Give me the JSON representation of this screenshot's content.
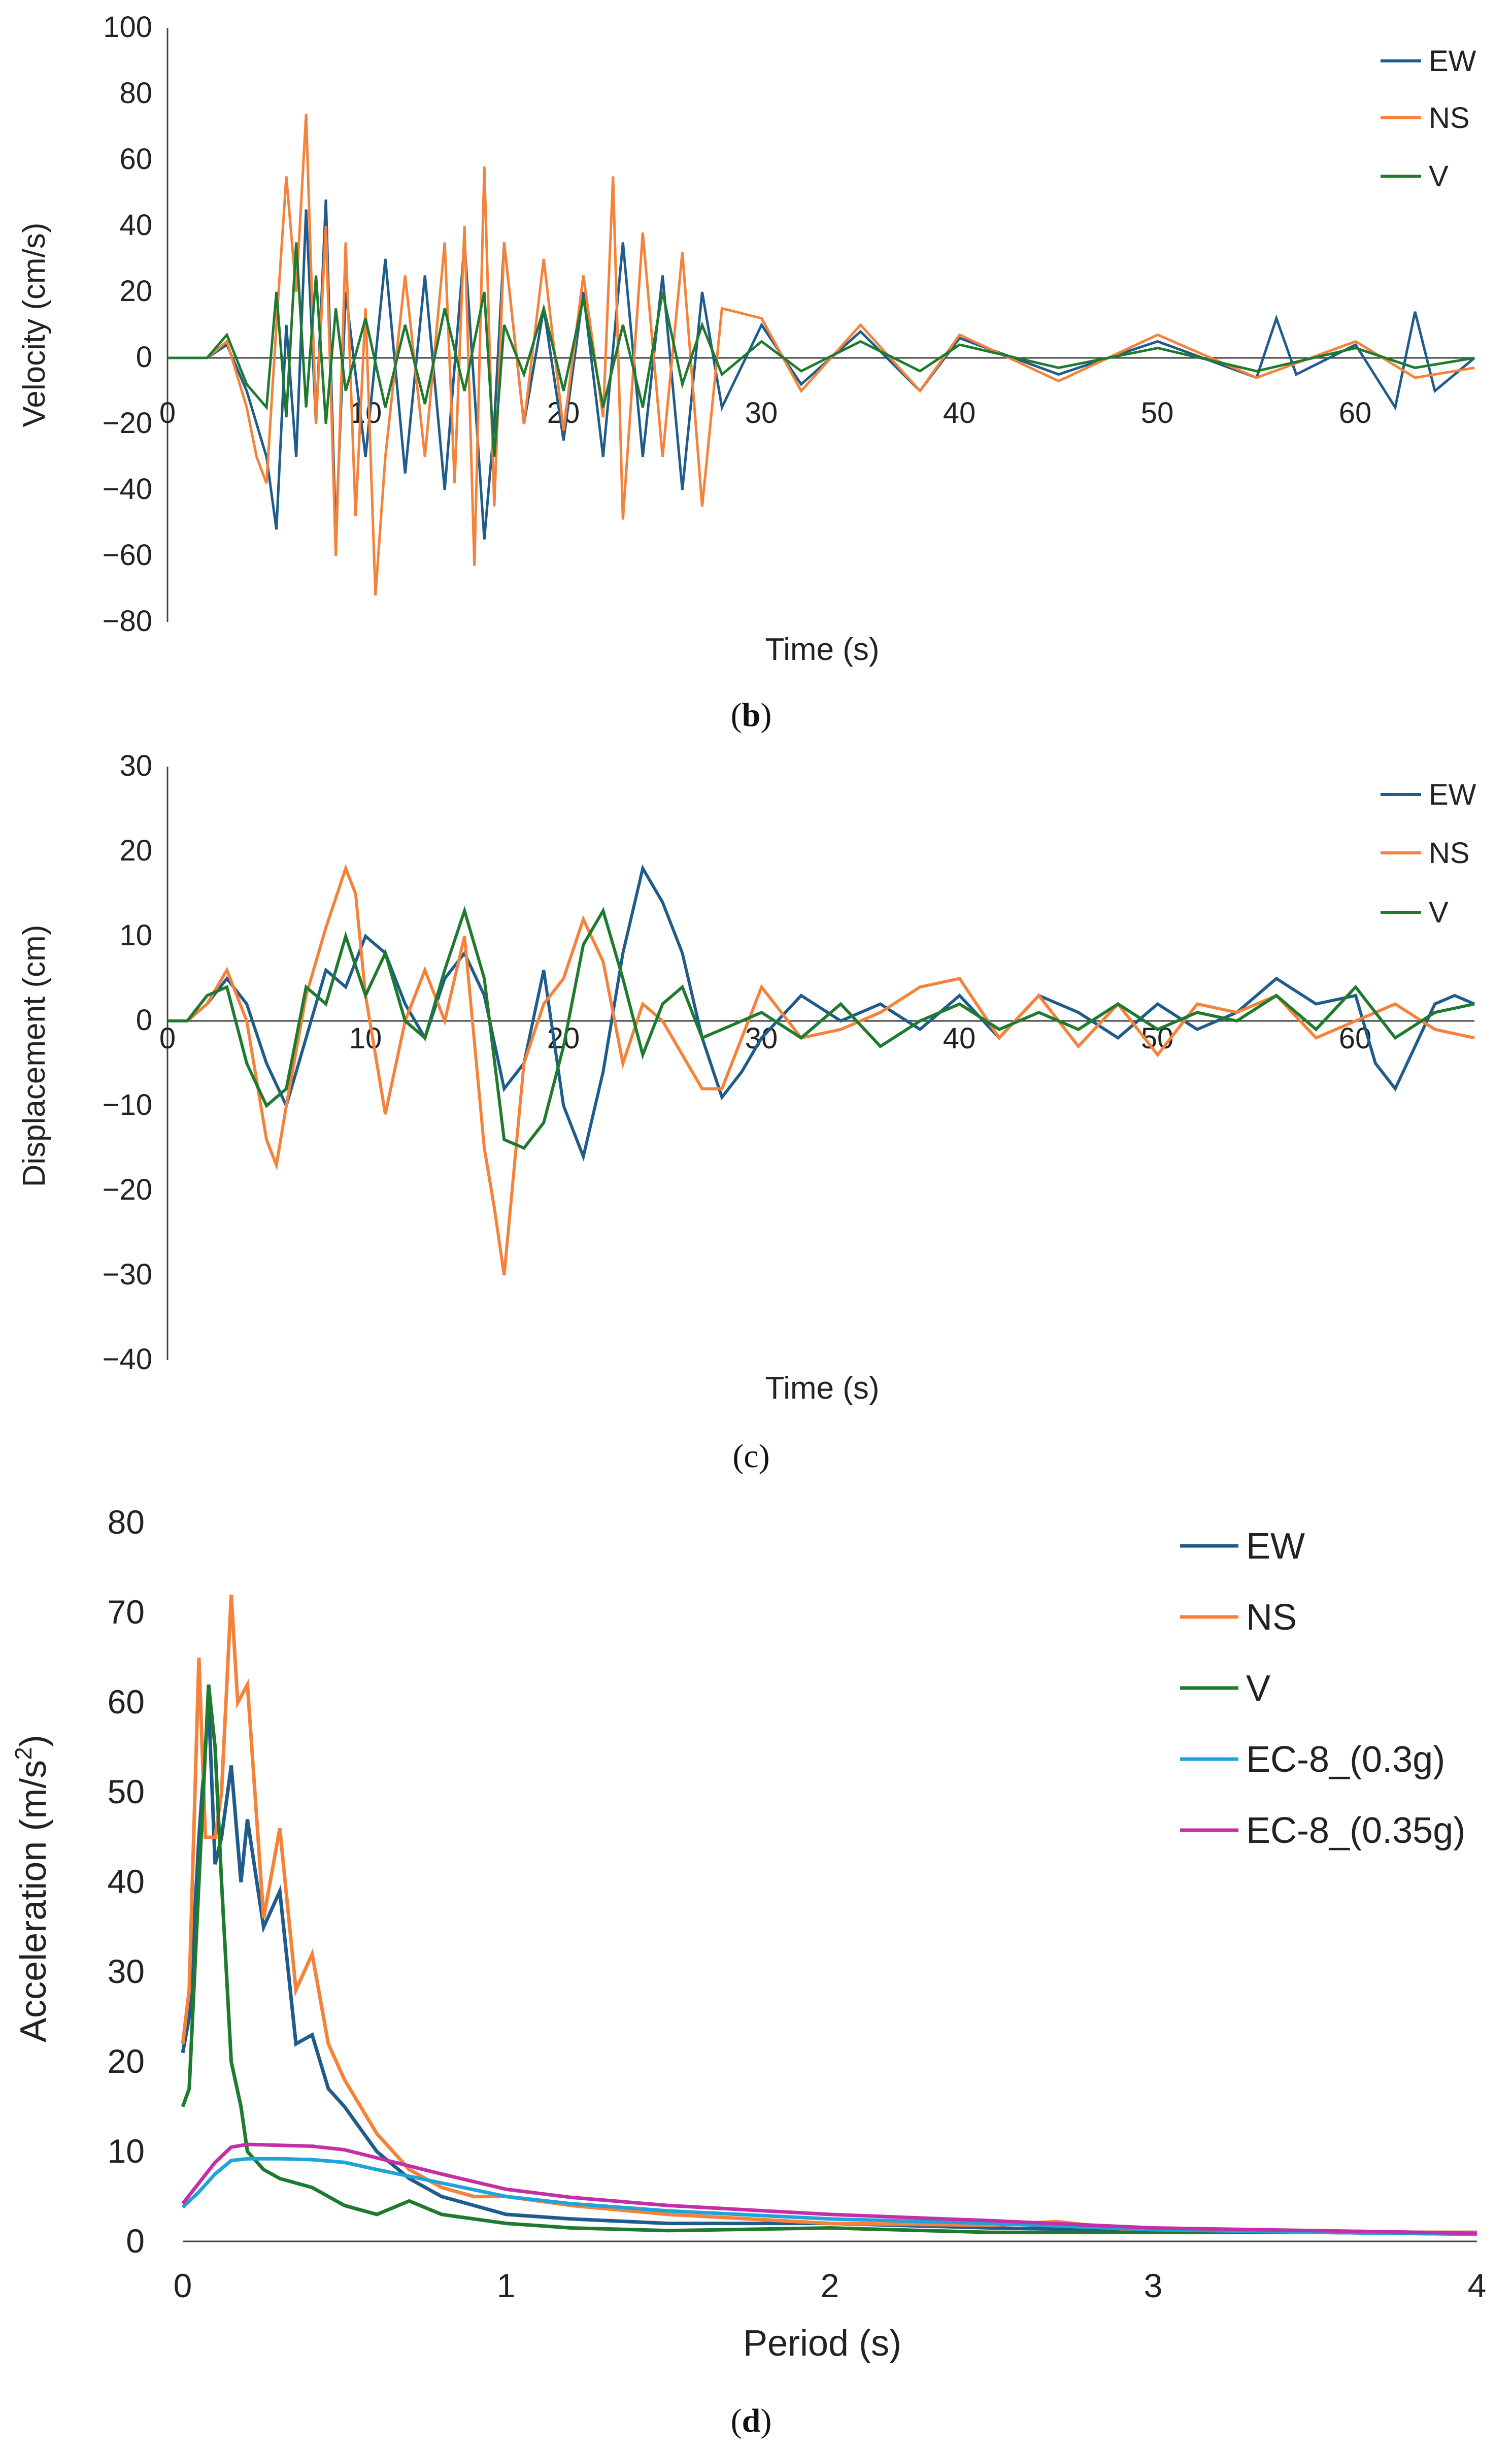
{
  "colors": {
    "EW": "#1f5c8b",
    "NS": "#f5823a",
    "V": "#1e7a2e",
    "EC8_03": "#1fa3d8",
    "EC8_035": "#c42fa8",
    "axis": "#444444"
  },
  "chart_data": [
    {
      "id": "b",
      "type": "line",
      "caption_label": "b",
      "xlabel": "Time (s)",
      "ylabel": "Velocity (cm/s)",
      "xlim": [
        0,
        66
      ],
      "ylim": [
        -80,
        100
      ],
      "xticks": [
        0,
        10,
        20,
        30,
        40,
        50,
        60
      ],
      "yticks": [
        100,
        80,
        60,
        40,
        20,
        0,
        -20,
        -40,
        -60,
        -80
      ],
      "xtick_labels": [
        "0",
        "10",
        "20",
        "30",
        "40",
        "50",
        "60"
      ],
      "ytick_labels": [
        "100",
        "80",
        "60",
        "40",
        "20",
        "0",
        "−20",
        "−40",
        "−60",
        "−80"
      ],
      "legend": [
        "EW",
        "NS",
        "V"
      ],
      "series": [
        {
          "name": "EW",
          "color_key": "EW",
          "x": [
            0,
            2,
            3,
            4,
            5,
            5.5,
            6,
            6.5,
            7,
            7.5,
            8,
            8.5,
            9,
            10,
            11,
            12,
            13,
            14,
            15,
            16,
            16.5,
            17,
            18,
            19,
            20,
            21,
            22,
            23,
            24,
            25,
            26,
            27,
            28,
            30,
            32,
            35,
            38,
            40,
            45,
            50,
            55,
            56,
            57,
            60,
            62,
            63,
            64,
            66
          ],
          "y": [
            0,
            0,
            4,
            -10,
            -30,
            -52,
            10,
            -30,
            45,
            -20,
            48,
            -54,
            20,
            -30,
            30,
            -35,
            25,
            -40,
            35,
            -55,
            -20,
            35,
            -20,
            15,
            -25,
            20,
            -30,
            35,
            -30,
            25,
            -40,
            20,
            -15,
            10,
            -8,
            8,
            -10,
            6,
            -5,
            5,
            -6,
            12,
            -5,
            4,
            -15,
            14,
            -10,
            0
          ]
        },
        {
          "name": "NS",
          "color_key": "NS",
          "x": [
            0,
            2,
            3,
            4,
            4.5,
            5,
            5.5,
            6,
            6.5,
            7,
            7.5,
            8,
            8.5,
            9,
            9.5,
            10,
            10.5,
            11,
            12,
            13,
            14,
            14.5,
            15,
            15.5,
            16,
            16.5,
            17,
            18,
            19,
            20,
            21,
            22,
            22.5,
            23,
            24,
            25,
            26,
            27,
            28,
            30,
            32,
            35,
            38,
            40,
            45,
            50,
            55,
            60,
            63,
            66
          ],
          "y": [
            0,
            0,
            5,
            -15,
            -30,
            -38,
            10,
            55,
            20,
            74,
            -20,
            40,
            -60,
            35,
            -48,
            15,
            -72,
            -30,
            25,
            -30,
            35,
            -38,
            40,
            -63,
            58,
            -45,
            35,
            -20,
            30,
            -22,
            25,
            -18,
            55,
            -49,
            38,
            -30,
            32,
            -45,
            15,
            12,
            -10,
            10,
            -10,
            7,
            -7,
            7,
            -6,
            5,
            -6,
            -3
          ]
        },
        {
          "name": "V",
          "color_key": "V",
          "x": [
            0,
            2,
            3,
            4,
            5,
            5.5,
            6,
            6.5,
            7,
            7.5,
            8,
            8.5,
            9,
            10,
            11,
            12,
            13,
            14,
            15,
            16,
            16.5,
            17,
            18,
            19,
            20,
            21,
            22,
            23,
            24,
            25,
            26,
            27,
            28,
            30,
            32,
            35,
            38,
            40,
            45,
            50,
            55,
            60,
            63,
            66
          ],
          "y": [
            0,
            0,
            7,
            -8,
            -15,
            20,
            -18,
            35,
            -15,
            25,
            -20,
            15,
            -10,
            12,
            -15,
            10,
            -14,
            15,
            -10,
            20,
            -30,
            10,
            -5,
            15,
            -10,
            18,
            -15,
            10,
            -15,
            20,
            -8,
            10,
            -5,
            5,
            -4,
            5,
            -4,
            4,
            -3,
            3,
            -4,
            3,
            -3,
            0
          ]
        }
      ]
    },
    {
      "id": "c",
      "type": "line",
      "caption_label": "c",
      "xlabel": "Time (s)",
      "ylabel": "Displacement (cm)",
      "xlim": [
        0,
        66
      ],
      "ylim": [
        -40,
        30
      ],
      "xticks": [
        0,
        10,
        20,
        30,
        40,
        50,
        60
      ],
      "yticks": [
        30,
        20,
        10,
        0,
        -10,
        -20,
        -30,
        -40
      ],
      "xtick_labels": [
        "0",
        "10",
        "20",
        "30",
        "40",
        "50",
        "60"
      ],
      "ytick_labels": [
        "30",
        "20",
        "10",
        "0",
        "−10",
        "−20",
        "−30",
        "−40"
      ],
      "legend": [
        "EW",
        "NS",
        "V"
      ],
      "series": [
        {
          "name": "EW",
          "color_key": "EW",
          "x": [
            0,
            1,
            2,
            3,
            4,
            5,
            6,
            7,
            8,
            9,
            10,
            11,
            12,
            13,
            14,
            15,
            16,
            17,
            18,
            19,
            20,
            21,
            22,
            23,
            24,
            25,
            26,
            27,
            28,
            29,
            30,
            32,
            34,
            36,
            38,
            40,
            42,
            44,
            46,
            48,
            50,
            52,
            54,
            56,
            58,
            60,
            61,
            62,
            63,
            64,
            65,
            66
          ],
          "y": [
            0,
            0,
            2,
            5,
            2,
            -5,
            -10,
            -2,
            6,
            4,
            10,
            8,
            2,
            -2,
            5,
            8,
            3,
            -8,
            -5,
            6,
            -10,
            -16,
            -6,
            8,
            18,
            14,
            8,
            -2,
            -9,
            -6,
            -2,
            3,
            0,
            2,
            -1,
            3,
            -2,
            3,
            1,
            -2,
            2,
            -1,
            1,
            5,
            2,
            3,
            -5,
            -8,
            -3,
            2,
            3,
            2
          ]
        },
        {
          "name": "NS",
          "color_key": "NS",
          "x": [
            0,
            1,
            2,
            3,
            4,
            5,
            5.5,
            6,
            7,
            8,
            9,
            9.5,
            10,
            11,
            12,
            13,
            14,
            15,
            16,
            16.5,
            17,
            18,
            19,
            20,
            21,
            22,
            23,
            24,
            25,
            26,
            27,
            28,
            29,
            30,
            32,
            34,
            36,
            38,
            40,
            42,
            44,
            46,
            48,
            50,
            52,
            54,
            56,
            58,
            60,
            62,
            64,
            66
          ],
          "y": [
            0,
            0,
            2,
            6,
            0,
            -14,
            -17,
            -10,
            3,
            11,
            18,
            15,
            3,
            -11,
            0,
            6,
            0,
            10,
            -15,
            -22,
            -30,
            -5,
            2,
            5,
            12,
            7,
            -5,
            2,
            0,
            -4,
            -8,
            -8,
            -2,
            4,
            -2,
            -1,
            1,
            4,
            5,
            -2,
            3,
            -3,
            2,
            -4,
            2,
            1,
            3,
            -2,
            0,
            2,
            -1,
            -2
          ]
        },
        {
          "name": "V",
          "color_key": "V",
          "x": [
            0,
            1,
            2,
            3,
            4,
            5,
            6,
            7,
            8,
            9,
            10,
            11,
            12,
            13,
            14,
            15,
            16,
            17,
            18,
            19,
            20,
            21,
            22,
            23,
            24,
            25,
            26,
            27,
            28,
            29,
            30,
            32,
            34,
            36,
            38,
            40,
            42,
            44,
            46,
            48,
            50,
            52,
            54,
            56,
            58,
            60,
            62,
            64,
            66
          ],
          "y": [
            0,
            0,
            3,
            4,
            -5,
            -10,
            -8,
            4,
            2,
            10,
            3,
            8,
            0,
            -2,
            6,
            13,
            5,
            -14,
            -15,
            -12,
            -3,
            9,
            13,
            5,
            -4,
            2,
            4,
            -2,
            -1,
            0,
            1,
            -2,
            2,
            -3,
            0,
            2,
            -1,
            1,
            -1,
            2,
            -1,
            1,
            0,
            3,
            -1,
            4,
            -2,
            1,
            2
          ]
        }
      ]
    },
    {
      "id": "d",
      "type": "line",
      "caption_label": "d",
      "xlabel": "Period (s)",
      "ylabel": "Acceleration (m/s²)",
      "ylabel_main": "Acceleration (m/s",
      "ylabel_sup": "2",
      "ylabel_end": ")",
      "xlim": [
        0,
        4
      ],
      "ylim": [
        0,
        80
      ],
      "xticks": [
        0,
        1,
        2,
        3,
        4
      ],
      "yticks": [
        80,
        70,
        60,
        50,
        40,
        30,
        20,
        10,
        0
      ],
      "xtick_labels": [
        "0",
        "1",
        "2",
        "3",
        "4"
      ],
      "ytick_labels": [
        "80",
        "70",
        "60",
        "50",
        "40",
        "30",
        "20",
        "10",
        "0"
      ],
      "legend": [
        "EW",
        "NS",
        "V",
        "EC-8_(0.3g)",
        "EC-8_(0.35g)"
      ],
      "series": [
        {
          "name": "EW",
          "color_key": "EW",
          "x": [
            0,
            0.02,
            0.05,
            0.08,
            0.1,
            0.12,
            0.15,
            0.18,
            0.2,
            0.25,
            0.3,
            0.35,
            0.4,
            0.45,
            0.5,
            0.6,
            0.7,
            0.8,
            0.9,
            1.0,
            1.2,
            1.5,
            2.0,
            2.5,
            3.0,
            3.5,
            4.0
          ],
          "y": [
            21,
            25,
            45,
            60,
            42,
            45,
            53,
            40,
            47,
            35,
            39,
            22,
            23,
            17,
            15,
            10,
            7,
            5,
            4,
            3,
            2.5,
            2,
            2,
            1.5,
            1.2,
            1,
            1
          ]
        },
        {
          "name": "NS",
          "color_key": "NS",
          "x": [
            0,
            0.02,
            0.05,
            0.07,
            0.1,
            0.12,
            0.15,
            0.17,
            0.2,
            0.25,
            0.3,
            0.35,
            0.4,
            0.45,
            0.5,
            0.6,
            0.7,
            0.8,
            0.9,
            1.0,
            1.2,
            1.5,
            2.0,
            2.5,
            2.7,
            3.0,
            3.5,
            4.0
          ],
          "y": [
            22,
            28,
            65,
            45,
            45,
            50,
            72,
            60,
            62,
            36,
            46,
            28,
            32,
            22,
            18,
            12,
            8,
            6,
            5,
            5,
            4,
            3,
            2,
            1.8,
            2.2,
            1,
            1,
            1
          ]
        },
        {
          "name": "V",
          "color_key": "V",
          "x": [
            0,
            0.02,
            0.05,
            0.08,
            0.1,
            0.12,
            0.15,
            0.18,
            0.2,
            0.25,
            0.3,
            0.4,
            0.5,
            0.6,
            0.7,
            0.8,
            0.9,
            1.0,
            1.2,
            1.5,
            2.0,
            2.5,
            3.0,
            3.5,
            4.0
          ],
          "y": [
            15,
            17,
            40,
            62,
            55,
            40,
            20,
            15,
            10,
            8,
            7,
            6,
            4,
            3,
            4.5,
            3,
            2.5,
            2,
            1.5,
            1.2,
            1.5,
            1,
            1,
            1,
            0.8
          ]
        },
        {
          "name": "EC-8_(0.3g)",
          "color_key": "EC8_03",
          "x": [
            0,
            0.05,
            0.1,
            0.15,
            0.2,
            0.3,
            0.4,
            0.5,
            0.6,
            0.8,
            1.0,
            1.2,
            1.5,
            2.0,
            2.5,
            3.0,
            3.5,
            4.0
          ],
          "y": [
            3.8,
            5.5,
            7.5,
            9,
            9.2,
            9.2,
            9.1,
            8.8,
            8,
            6.5,
            5,
            4.2,
            3.4,
            2.5,
            2,
            1.3,
            1,
            0.8
          ]
        },
        {
          "name": "EC-8_(0.35g)",
          "color_key": "EC8_035",
          "x": [
            0,
            0.05,
            0.1,
            0.15,
            0.2,
            0.3,
            0.4,
            0.5,
            0.6,
            0.8,
            1.0,
            1.2,
            1.5,
            2.0,
            2.5,
            3.0,
            3.5,
            4.0
          ],
          "y": [
            4.2,
            6.5,
            8.8,
            10.5,
            10.8,
            10.7,
            10.6,
            10.2,
            9.3,
            7.5,
            5.8,
            4.9,
            4,
            3,
            2.3,
            1.5,
            1.2,
            0.9
          ]
        }
      ]
    }
  ]
}
